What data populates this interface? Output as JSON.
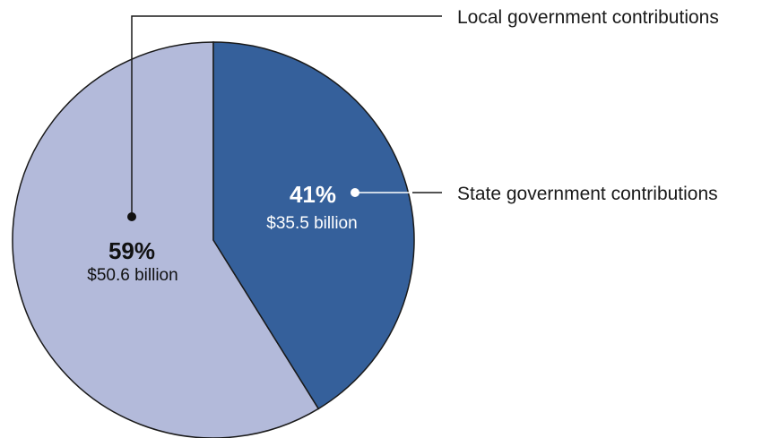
{
  "chart_data": {
    "type": "pie",
    "slices": [
      {
        "label": "State government contributions",
        "percent_text": "41%",
        "amount_text": "$35.5 billion",
        "value": 35.5,
        "color": "#35609b",
        "label_color": "#ffffff"
      },
      {
        "label": "Local government contributions",
        "percent_text": "59%",
        "amount_text": "$50.6 billion",
        "value": 50.6,
        "color": "#b3bada",
        "label_color": "#111111"
      }
    ],
    "start_angle_deg": 0,
    "direction": "clockwise"
  }
}
